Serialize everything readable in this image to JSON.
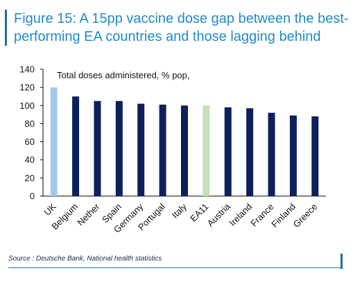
{
  "header": {
    "title_line1": "Figure 15: A 15pp vaccine dose gap between the best-",
    "title_line2": "performing EA countries and those lagging behind"
  },
  "footer": {
    "source": "Source : Deutsche Bank, National health statistics"
  },
  "colors": {
    "title": "#1f8bc9",
    "bar_default": "#0d1f5c",
    "bar_uk": "#a6c8e6",
    "bar_ea11": "#c5e0b4",
    "accent": "#1f6aa5"
  },
  "chart_data": {
    "type": "bar",
    "title": "",
    "annotation": "Total doses administered, % pop,",
    "categories": [
      "UK",
      "Belgium",
      "Nether",
      "Spain",
      "Germany",
      "Portugal",
      "Italy",
      "EA11",
      "Austria",
      "Ireland",
      "France",
      "Finland",
      "Greece"
    ],
    "values": [
      120,
      110,
      105,
      105,
      102,
      101,
      100,
      100,
      98,
      97,
      92,
      89,
      88
    ],
    "ylim": [
      0,
      140
    ],
    "yticks": [
      0,
      20,
      40,
      60,
      80,
      100,
      120,
      140
    ],
    "xlabel": "",
    "ylabel": "",
    "grid": false,
    "legend": "none"
  }
}
